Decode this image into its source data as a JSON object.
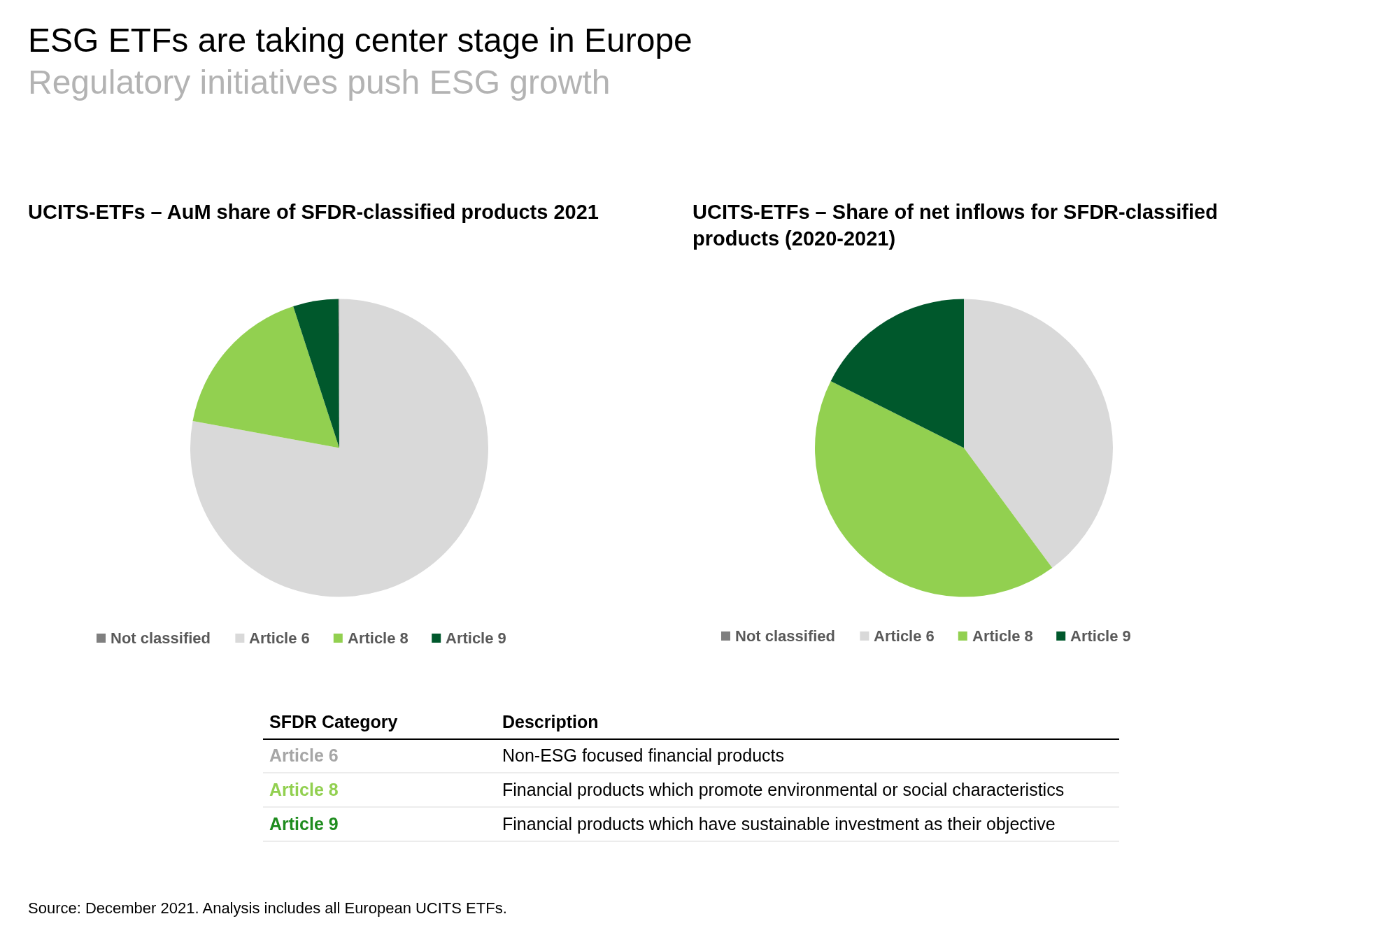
{
  "chart_data": [
    {
      "type": "other",
      "title": "ESG ETFs are taking center stage in Europe",
      "subtitle": "Regulatory initiatives push ESG growth"
    },
    {
      "type": "pie",
      "title": "UCITS-ETFs – AuM share of SFDR-classified products 2021",
      "categories": [
        "Not classified",
        "Article 6",
        "Article 8",
        "Article 9"
      ],
      "values": [
        0.1,
        77.9,
        17.1,
        4.9
      ],
      "colors": [
        "#7f7f7f",
        "#d9d9d9",
        "#92d050",
        "#00582c"
      ],
      "legend": "bottom"
    },
    {
      "type": "pie",
      "title": "UCITS-ETFs – Share of net inflows for SFDR-classified products (2020-2021)",
      "categories": [
        "Not classified",
        "Article 6",
        "Article 8",
        "Article 9"
      ],
      "values": [
        0,
        39.9,
        42.5,
        17.6
      ],
      "colors": [
        "#7f7f7f",
        "#d9d9d9",
        "#92d050",
        "#00582c"
      ],
      "legend": "bottom"
    },
    {
      "type": "other",
      "colors": [
        "#a6a6a6",
        "#92d050",
        "#1e8c1e"
      ],
      "annotations": [
        "SFDR Category",
        "Description",
        "Article 6",
        "Non-ESG focused financial products",
        "Article 8",
        "Financial products which promote environmental or social characteristics",
        "Article 9",
        "Financial products which have sustainable investment as their objective",
        "Source: December 2021. Analysis includes all European UCITS ETFs."
      ]
    }
  ]
}
